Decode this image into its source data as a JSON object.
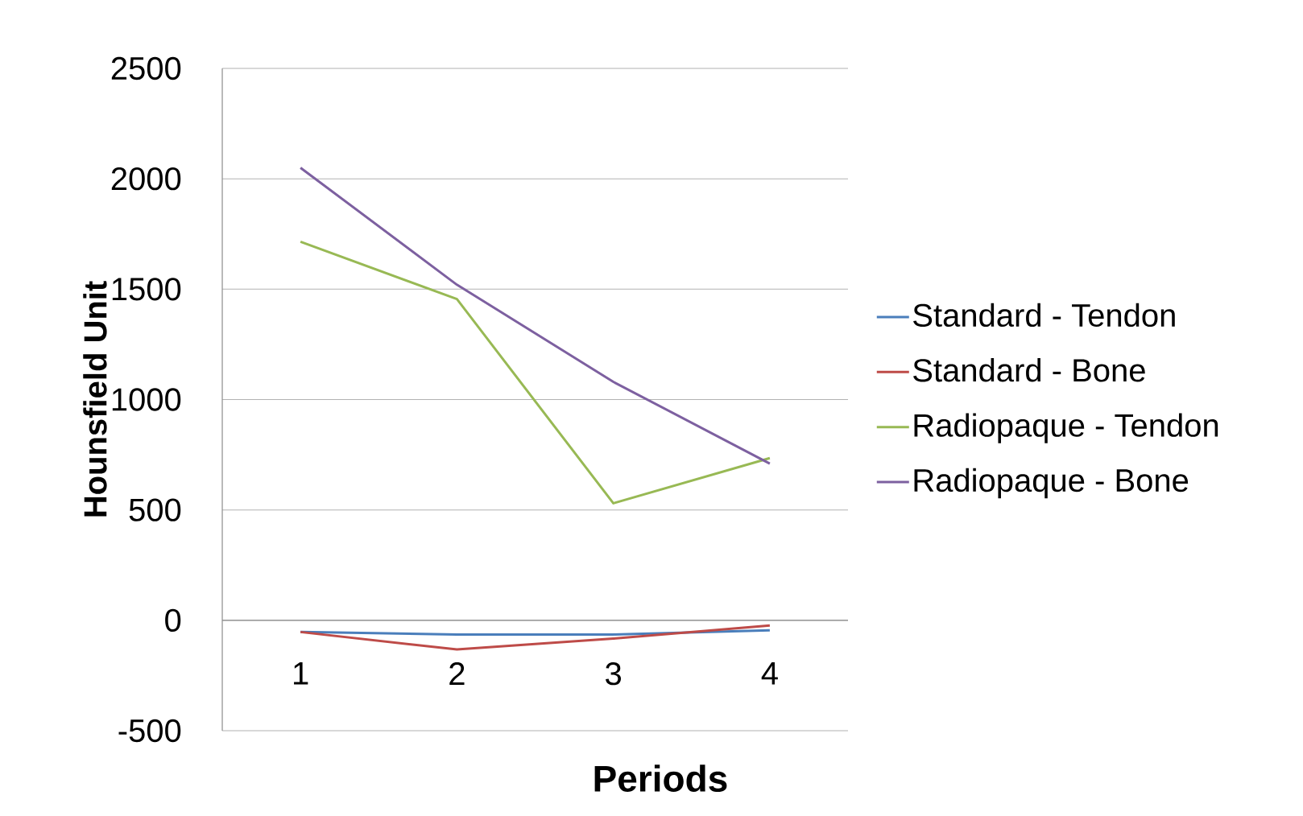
{
  "chart_data": {
    "type": "line",
    "xlabel": "Periods",
    "ylabel": "Hounsfield Unit",
    "categories": [
      "1",
      "2",
      "3",
      "4"
    ],
    "series": [
      {
        "name": "Standard - Tendon",
        "color": "#4a7ebb",
        "values": [
          -53,
          -64,
          -64,
          -45
        ]
      },
      {
        "name": "Standard - Bone",
        "color": "#be4b48",
        "values": [
          -53,
          -132,
          -83,
          -23
        ]
      },
      {
        "name": "Radiopaque - Tendon",
        "color": "#98b954",
        "values": [
          1715,
          1455,
          530,
          735
        ]
      },
      {
        "name": "Radiopaque - Bone",
        "color": "#7d60a0",
        "values": [
          2050,
          1520,
          1080,
          710
        ]
      }
    ],
    "ylim": [
      -500,
      2500
    ],
    "yticks": [
      -500,
      0,
      500,
      1000,
      1500,
      2000,
      2500
    ],
    "grid": "y",
    "legend": "right",
    "marker": "none",
    "line_style": "solid"
  }
}
